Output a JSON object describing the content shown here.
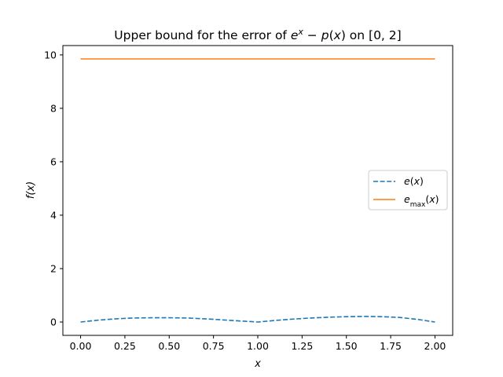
{
  "chart_data": {
    "type": "line",
    "title": "Upper bound for the error of  e^x − p(x) on [0, 2]",
    "xlabel": "x",
    "ylabel": "f(x)",
    "xlim": [
      -0.1,
      2.1
    ],
    "ylim": [
      -0.5,
      10.35
    ],
    "xticks": [
      "0.00",
      "0.25",
      "0.50",
      "0.75",
      "1.00",
      "1.25",
      "1.50",
      "1.75",
      "2.00"
    ],
    "xtick_values": [
      0,
      0.25,
      0.5,
      0.75,
      1.0,
      1.25,
      1.5,
      1.75,
      2.0
    ],
    "yticks": [
      "0",
      "2",
      "4",
      "6",
      "8",
      "10"
    ],
    "ytick_values": [
      0,
      2,
      4,
      6,
      8,
      10
    ],
    "grid": false,
    "legend_position": "center-right",
    "series": [
      {
        "name": "e(x)",
        "style": "dashed",
        "color": "#1f77b4",
        "x": [
          0,
          0.1,
          0.2,
          0.3,
          0.4,
          0.5,
          0.6,
          0.7,
          0.8,
          0.9,
          1.0,
          1.1,
          1.2,
          1.3,
          1.4,
          1.5,
          1.6,
          1.7,
          1.8,
          1.9,
          2.0
        ],
        "values": [
          0,
          0.07,
          0.12,
          0.15,
          0.16,
          0.16,
          0.15,
          0.12,
          0.08,
          0.04,
          0,
          0.06,
          0.11,
          0.15,
          0.18,
          0.2,
          0.21,
          0.2,
          0.17,
          0.1,
          0
        ]
      },
      {
        "name": "e_max(x)",
        "style": "solid",
        "color": "#ff7f0e",
        "x": [
          0,
          2
        ],
        "values": [
          9.85,
          9.85
        ]
      }
    ]
  }
}
